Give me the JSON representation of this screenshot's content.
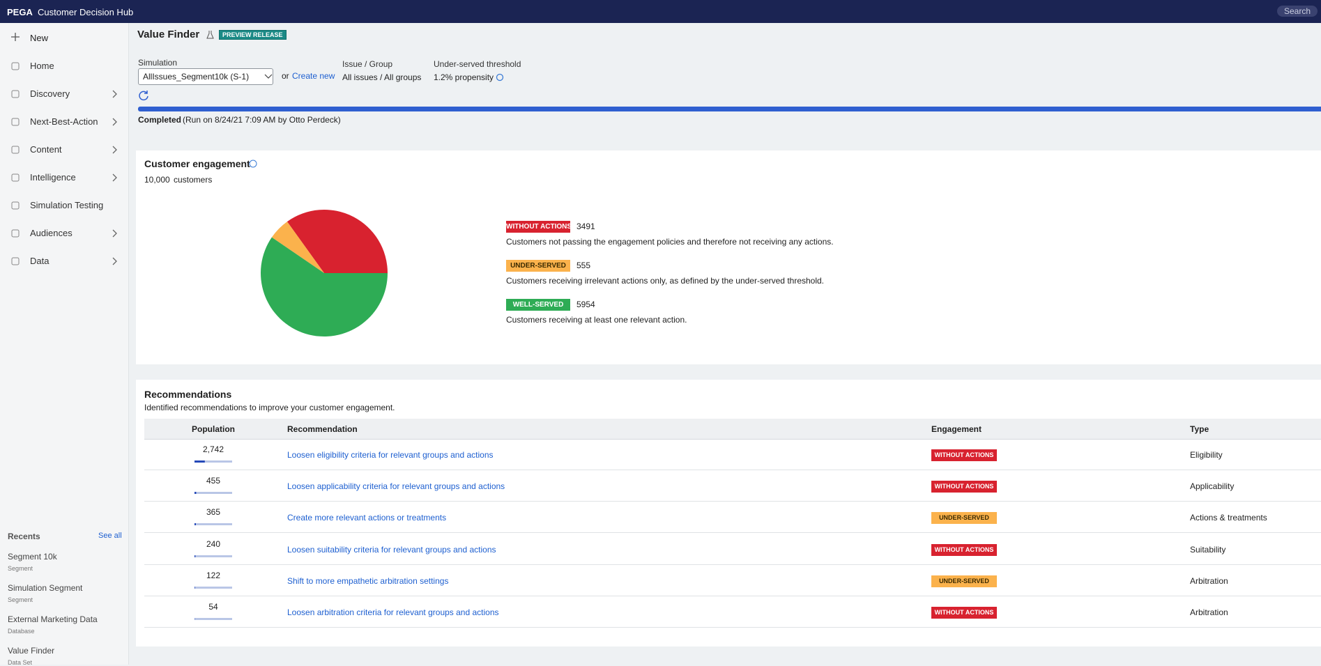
{
  "header": {
    "brand": "PEGA",
    "app": "Customer Decision Hub",
    "search": "Search"
  },
  "sidebar": {
    "new": "New",
    "items": [
      {
        "label": "Home",
        "expandable": false
      },
      {
        "label": "Discovery",
        "expandable": true
      },
      {
        "label": "Next-Best-Action",
        "expandable": true
      },
      {
        "label": "Content",
        "expandable": true
      },
      {
        "label": "Intelligence",
        "expandable": true
      },
      {
        "label": "Simulation Testing",
        "expandable": false
      },
      {
        "label": "Audiences",
        "expandable": true
      },
      {
        "label": "Data",
        "expandable": true
      }
    ],
    "recents": {
      "title": "Recents",
      "see_all": "See all",
      "items": [
        {
          "name": "Segment 10k",
          "kind": "Segment"
        },
        {
          "name": "Simulation Segment",
          "kind": "Segment"
        },
        {
          "name": "External Marketing Data",
          "kind": "Database"
        },
        {
          "name": "Value Finder",
          "kind": "Data Set"
        }
      ]
    }
  },
  "page": {
    "title": "Value Finder",
    "badge": "PREVIEW RELEASE",
    "simulation": {
      "label": "Simulation",
      "value": "AllIssues_Segment10k (S-1)",
      "or": "or",
      "create": "Create new"
    },
    "issue_group": {
      "label": "Issue / Group",
      "value": "All issues / All groups"
    },
    "threshold": {
      "label": "Under-served threshold",
      "value": "1.2% propensity"
    },
    "status": "Completed",
    "run": "(Run on 8/24/21 7:09 AM by Otto Perdeck)"
  },
  "engagement": {
    "title": "Customer engagement",
    "customers": {
      "value": 10000,
      "label": "10,000"
    },
    "customers_unit": "customers",
    "chart_data": {
      "type": "pie",
      "categories": [
        "WITHOUT ACTIONS",
        "UNDER-SERVED",
        "WELL-SERVED"
      ],
      "values": [
        3491,
        555,
        5954
      ],
      "colors": [
        "#d8222f",
        "#fbb24c",
        "#2eac55"
      ],
      "descriptions": [
        "Customers not passing the engagement policies and therefore not receiving any actions.",
        "Customers receiving irrelevant actions only, as defined by the under-served threshold.",
        "Customers receiving at least one relevant action."
      ]
    }
  },
  "recommendations": {
    "title": "Recommendations",
    "subtitle": "Identified recommendations to improve your customer engagement.",
    "columns": [
      "Population",
      "Recommendation",
      "Engagement",
      "Type"
    ],
    "rows": [
      {
        "population": {
          "value": 2742,
          "label": "2,742"
        },
        "recommendation": "Loosen eligibility criteria for relevant groups and actions",
        "engagement": "WITHOUT ACTIONS",
        "type": "Eligibility"
      },
      {
        "population": 455,
        "recommendation": "Loosen applicability criteria for relevant groups and actions",
        "engagement": "WITHOUT ACTIONS",
        "type": "Applicability"
      },
      {
        "population": 365,
        "recommendation": "Create more relevant actions or treatments",
        "engagement": "UNDER-SERVED",
        "type": "Actions & treatments"
      },
      {
        "population": 240,
        "recommendation": "Loosen suitability criteria for relevant groups and actions",
        "engagement": "WITHOUT ACTIONS",
        "type": "Suitability"
      },
      {
        "population": 122,
        "recommendation": "Shift to more empathetic arbitration settings",
        "engagement": "UNDER-SERVED",
        "type": "Arbitration"
      },
      {
        "population": 54,
        "recommendation": "Loosen arbitration criteria for relevant groups and actions",
        "engagement": "WITHOUT ACTIONS",
        "type": "Arbitration"
      }
    ]
  }
}
